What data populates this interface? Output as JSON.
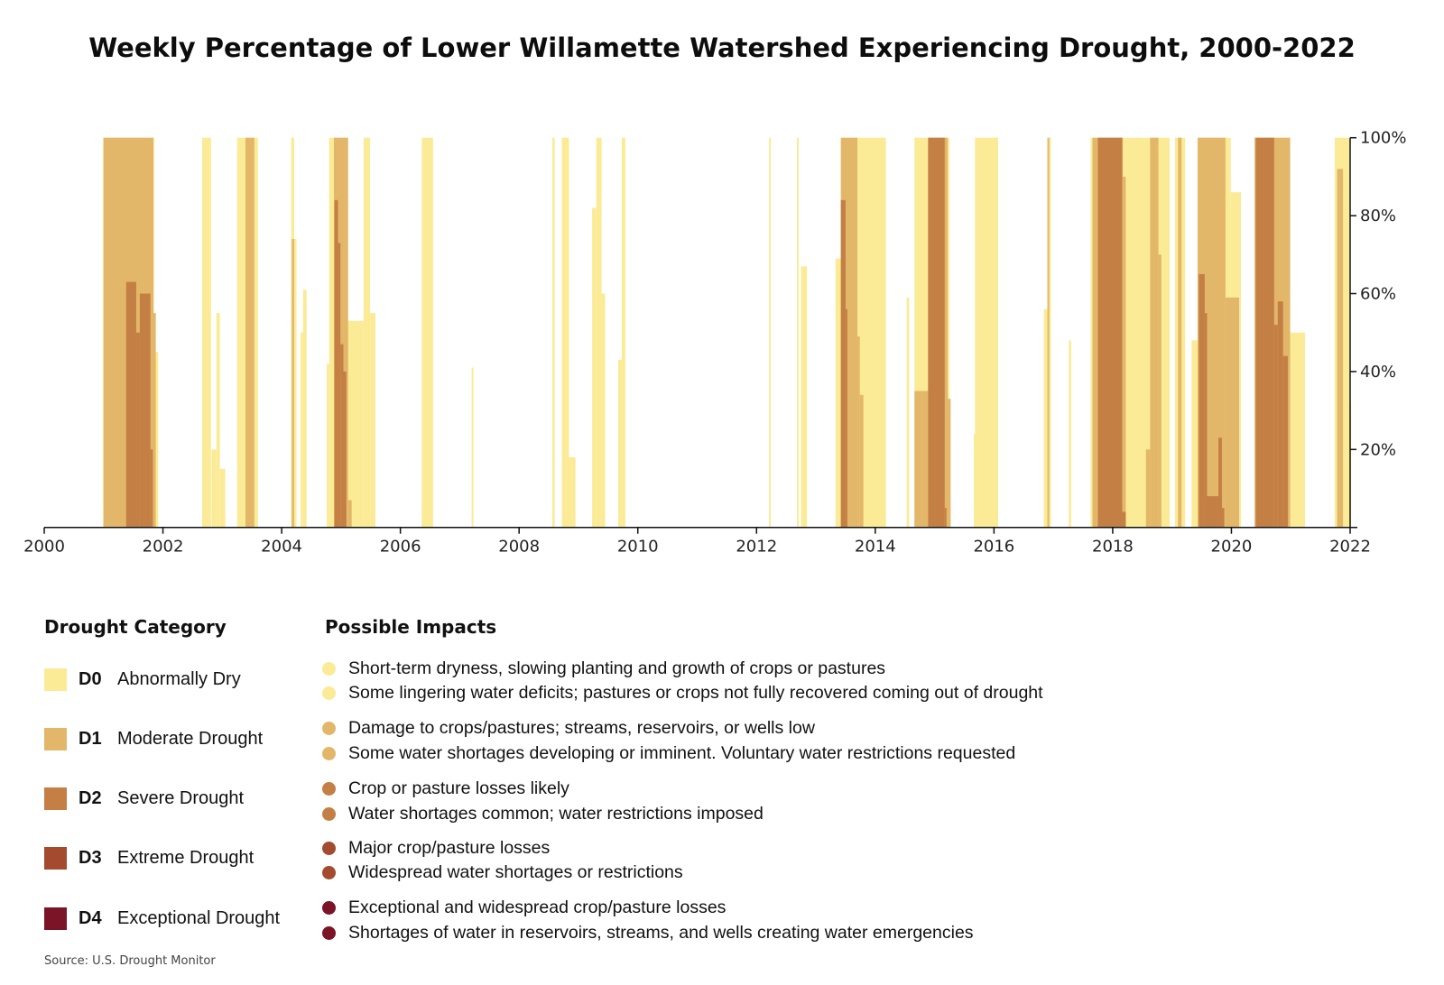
{
  "title": "Weekly Percentage of Lower Willamette Watershed Experiencing Drought, 2000-2022",
  "chart_data": {
    "type": "area",
    "title": "Weekly Percentage of Lower Willamette Watershed Experiencing Drought, 2000-2022",
    "xlabel": "",
    "ylabel": "",
    "xlim": [
      2000,
      2022
    ],
    "ylim": [
      0,
      100
    ],
    "x_ticks": [
      "2000",
      "2002",
      "2004",
      "2006",
      "2008",
      "2010",
      "2012",
      "2014",
      "2016",
      "2018",
      "2020",
      "2022"
    ],
    "y_ticks": [
      "20%",
      "40%",
      "60%",
      "80%",
      "100%"
    ],
    "y_axis_side": "right",
    "grid": false,
    "segment_format": "[start_year, end_year, percent_area_at_or_above_category]",
    "series": [
      {
        "name": "D0 Abnormally Dry",
        "color": "#fbeb96",
        "segments": [
          [
            2000.99,
            2001.85,
            100
          ],
          [
            2001.85,
            2001.92,
            45
          ],
          [
            2002.66,
            2002.81,
            100
          ],
          [
            2002.82,
            2002.9,
            20
          ],
          [
            2002.9,
            2002.96,
            55
          ],
          [
            2002.96,
            2003.05,
            15
          ],
          [
            2003.25,
            2003.6,
            100
          ],
          [
            2004.16,
            2004.21,
            100
          ],
          [
            2004.21,
            2004.25,
            74
          ],
          [
            2004.32,
            2004.36,
            50
          ],
          [
            2004.36,
            2004.42,
            61
          ],
          [
            2004.76,
            2004.8,
            42
          ],
          [
            2004.8,
            2005.1,
            100
          ],
          [
            2005.1,
            2005.38,
            53
          ],
          [
            2005.38,
            2005.49,
            100
          ],
          [
            2005.49,
            2005.58,
            55
          ],
          [
            2006.36,
            2006.55,
            100
          ],
          [
            2007.2,
            2007.23,
            41
          ],
          [
            2008.56,
            2008.6,
            100
          ],
          [
            2008.72,
            2008.84,
            100
          ],
          [
            2008.84,
            2008.95,
            18
          ],
          [
            2009.23,
            2009.3,
            82
          ],
          [
            2009.3,
            2009.39,
            100
          ],
          [
            2009.39,
            2009.45,
            60
          ],
          [
            2009.67,
            2009.73,
            43
          ],
          [
            2009.73,
            2009.79,
            100
          ],
          [
            2012.21,
            2012.24,
            100
          ],
          [
            2012.68,
            2012.71,
            100
          ],
          [
            2012.75,
            2012.85,
            67
          ],
          [
            2013.33,
            2013.42,
            69
          ],
          [
            2013.42,
            2014.18,
            100
          ],
          [
            2014.53,
            2014.57,
            59
          ],
          [
            2014.66,
            2015.25,
            100
          ],
          [
            2015.66,
            2015.68,
            24
          ],
          [
            2015.68,
            2016.07,
            100
          ],
          [
            2016.84,
            2016.9,
            56
          ],
          [
            2016.9,
            2016.96,
            100
          ],
          [
            2017.26,
            2017.3,
            48
          ],
          [
            2017.63,
            2018.96,
            100
          ],
          [
            2019.05,
            2019.22,
            100
          ],
          [
            2019.33,
            2019.43,
            48
          ],
          [
            2019.43,
            2019.99,
            100
          ],
          [
            2019.99,
            2020.16,
            86
          ],
          [
            2020.39,
            2020.99,
            100
          ],
          [
            2020.99,
            2021.24,
            50
          ],
          [
            2021.74,
            2021.99,
            100
          ],
          [
            2021.99,
            2022.0,
            32
          ]
        ]
      },
      {
        "name": "D1 Moderate Drought",
        "color": "#e3b76a",
        "segments": [
          [
            2001.0,
            2001.84,
            100
          ],
          [
            2001.84,
            2001.88,
            55
          ],
          [
            2003.39,
            2003.54,
            100
          ],
          [
            2004.17,
            2004.21,
            74
          ],
          [
            2004.88,
            2005.12,
            100
          ],
          [
            2005.12,
            2005.18,
            7
          ],
          [
            2013.42,
            2013.7,
            100
          ],
          [
            2013.7,
            2013.74,
            49
          ],
          [
            2013.74,
            2013.8,
            34
          ],
          [
            2014.66,
            2014.89,
            35
          ],
          [
            2014.89,
            2015.22,
            100
          ],
          [
            2015.22,
            2015.27,
            33
          ],
          [
            2016.9,
            2016.93,
            100
          ],
          [
            2017.66,
            2018.17,
            100
          ],
          [
            2018.17,
            2018.22,
            90
          ],
          [
            2018.56,
            2018.63,
            20
          ],
          [
            2018.63,
            2018.77,
            100
          ],
          [
            2018.77,
            2018.82,
            70
          ],
          [
            2019.1,
            2019.16,
            100
          ],
          [
            2019.43,
            2019.9,
            100
          ],
          [
            2019.9,
            2020.13,
            59
          ],
          [
            2020.39,
            2020.99,
            100
          ],
          [
            2021.78,
            2021.88,
            92
          ]
        ]
      },
      {
        "name": "D2 Severe Drought",
        "color": "#c47f45",
        "segments": [
          [
            2001.38,
            2001.55,
            63
          ],
          [
            2001.55,
            2001.61,
            50
          ],
          [
            2001.61,
            2001.79,
            60
          ],
          [
            2001.79,
            2001.83,
            20
          ],
          [
            2004.89,
            2004.95,
            84
          ],
          [
            2004.95,
            2004.99,
            73
          ],
          [
            2004.99,
            2005.04,
            47
          ],
          [
            2005.04,
            2005.09,
            40
          ],
          [
            2013.42,
            2013.5,
            84
          ],
          [
            2013.5,
            2013.53,
            56
          ],
          [
            2014.89,
            2015.17,
            100
          ],
          [
            2015.17,
            2015.2,
            5
          ],
          [
            2017.75,
            2018.16,
            100
          ],
          [
            2018.16,
            2018.22,
            4
          ],
          [
            2019.45,
            2019.55,
            65
          ],
          [
            2019.55,
            2019.59,
            55
          ],
          [
            2019.59,
            2019.78,
            8
          ],
          [
            2019.78,
            2019.84,
            23
          ],
          [
            2019.84,
            2019.88,
            5
          ],
          [
            2020.41,
            2020.72,
            100
          ],
          [
            2020.72,
            2020.78,
            52
          ],
          [
            2020.78,
            2020.87,
            58
          ],
          [
            2020.87,
            2020.95,
            44
          ]
        ]
      }
    ]
  },
  "legend": {
    "category_header": "Drought Category",
    "impacts_header": "Possible Impacts",
    "categories": [
      {
        "code": "D0",
        "name": "Abnormally Dry",
        "color": "#fbeb96"
      },
      {
        "code": "D1",
        "name": "Moderate Drought",
        "color": "#e3b76a"
      },
      {
        "code": "D2",
        "name": "Severe Drought",
        "color": "#c47f45"
      },
      {
        "code": "D3",
        "name": "Extreme Drought",
        "color": "#a44a2e"
      },
      {
        "code": "D4",
        "name": "Exceptional Drought",
        "color": "#7a1426"
      }
    ],
    "impacts": [
      [
        "Short-term dryness, slowing planting and growth of crops or pastures",
        "Some lingering water deficits; pastures or crops not fully recovered coming out of drought"
      ],
      [
        "Damage to crops/pastures; streams, reservoirs, or wells low",
        "Some water shortages developing or imminent. Voluntary water restrictions requested"
      ],
      [
        "Crop or pasture losses likely",
        "Water shortages common; water restrictions imposed"
      ],
      [
        "Major crop/pasture losses",
        "Widespread water shortages or restrictions"
      ],
      [
        "Exceptional and widespread crop/pasture losses",
        "Shortages of water in reservoirs, streams, and wells creating water emergencies"
      ]
    ]
  },
  "source": "Source: U.S. Drought Monitor"
}
